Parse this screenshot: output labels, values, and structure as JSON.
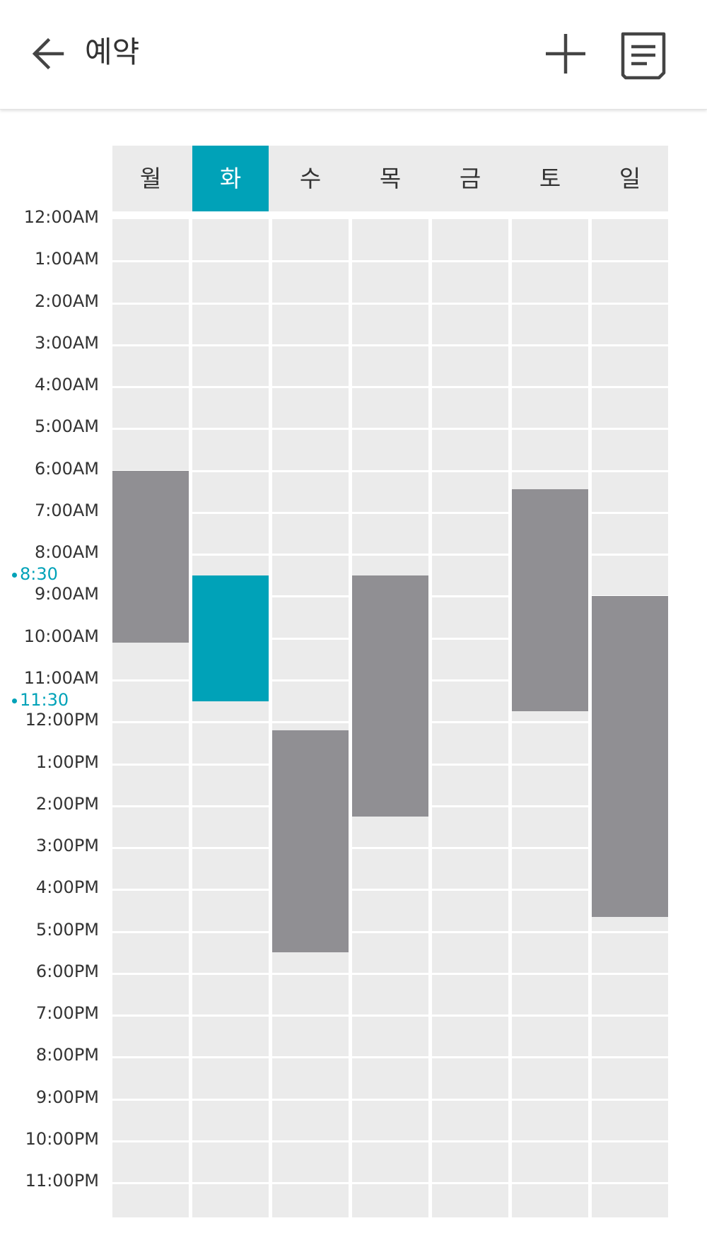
{
  "header": {
    "title": "예약",
    "icons": {
      "back": "arrow-left-icon",
      "add": "plus-icon",
      "list": "document-list-icon"
    }
  },
  "colors": {
    "accent": "#00a2b8",
    "reserved": "#908f93",
    "grid": "#ebebeb"
  },
  "days": [
    {
      "label": "월",
      "selected": false
    },
    {
      "label": "화",
      "selected": true
    },
    {
      "label": "수",
      "selected": false
    },
    {
      "label": "목",
      "selected": false
    },
    {
      "label": "금",
      "selected": false
    },
    {
      "label": "토",
      "selected": false
    },
    {
      "label": "일",
      "selected": false
    }
  ],
  "hours": [
    "12:00AM",
    "1:00AM",
    "2:00AM",
    "3:00AM",
    "4:00AM",
    "5:00AM",
    "6:00AM",
    "7:00AM",
    "8:00AM",
    "9:00AM",
    "10:00AM",
    "11:00AM",
    "12:00PM",
    "1:00PM",
    "2:00PM",
    "3:00PM",
    "4:00PM",
    "5:00PM",
    "6:00PM",
    "7:00PM",
    "8:00PM",
    "9:00PM",
    "10:00PM",
    "11:00PM"
  ],
  "selection": {
    "start_label": "8:30",
    "end_label": "11:30"
  },
  "bookings": [
    {
      "day": 0,
      "start": 6.0,
      "end": 10.1,
      "selected": false
    },
    {
      "day": 1,
      "start": 8.5,
      "end": 11.5,
      "selected": true
    },
    {
      "day": 2,
      "start": 12.2,
      "end": 17.5,
      "selected": false
    },
    {
      "day": 3,
      "start": 8.5,
      "end": 14.25,
      "selected": false
    },
    {
      "day": 5,
      "start": 6.45,
      "end": 11.75,
      "selected": false
    },
    {
      "day": 6,
      "start": 9.0,
      "end": 16.65,
      "selected": false
    }
  ]
}
